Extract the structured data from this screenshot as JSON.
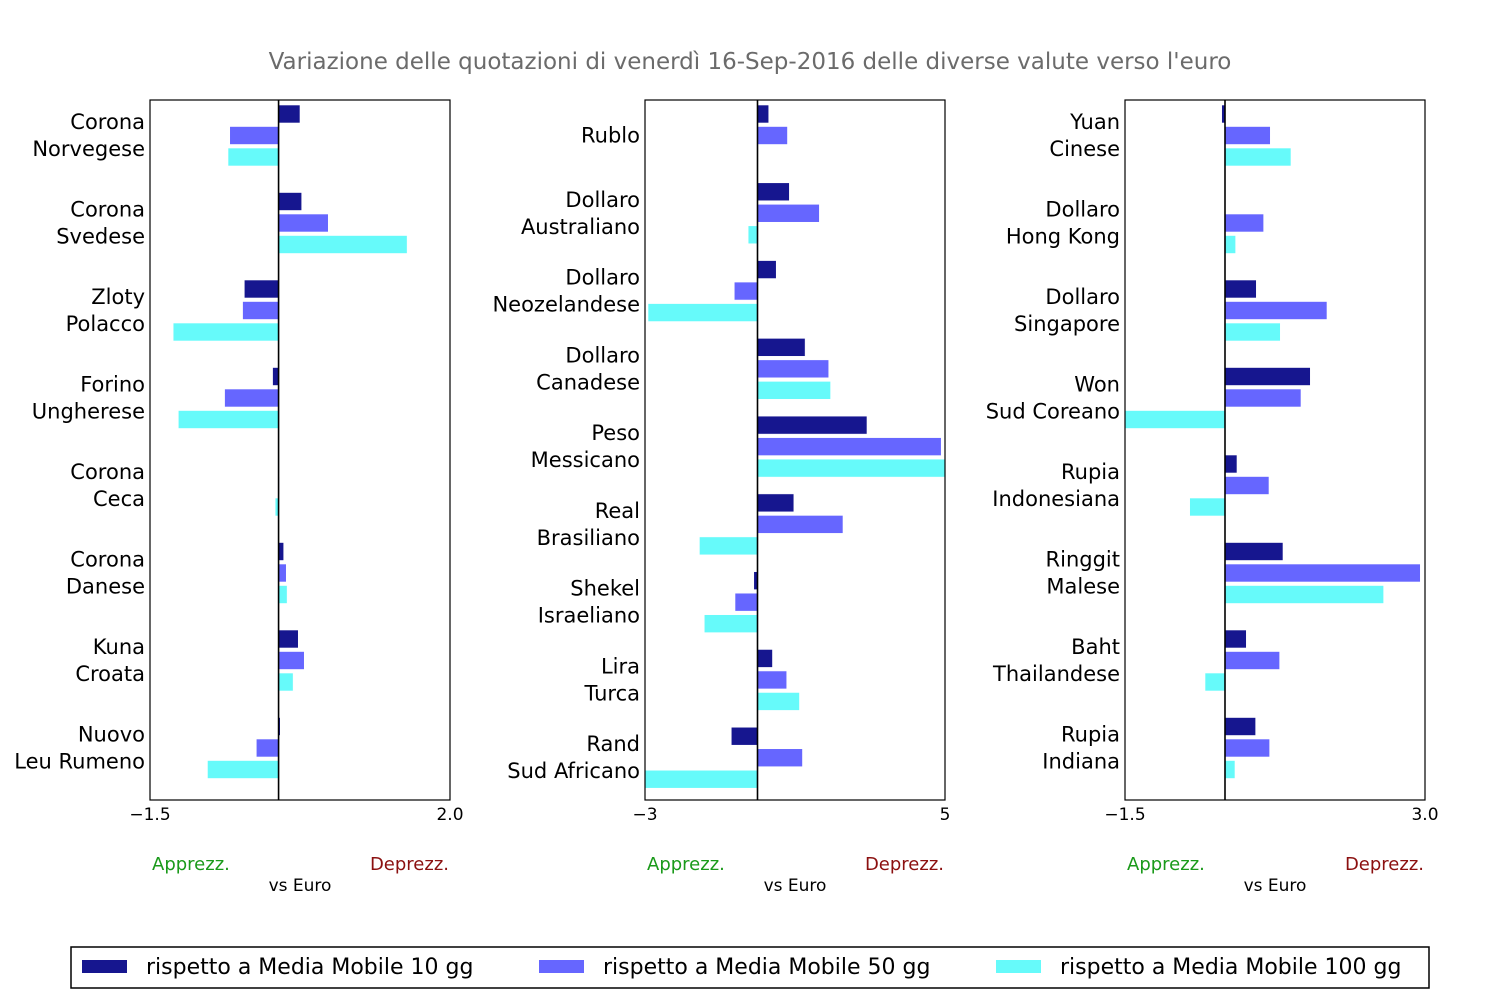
{
  "chart_title": "Variazione delle quotazioni di venerdì 16-Sep-2016 delle diverse valute verso l'euro",
  "colors": {
    "series": [
      "#16168f",
      "#6666ff",
      "#66fafa"
    ],
    "apprezz": "#1a9a1a",
    "deprezz": "#8b1010",
    "title": "#6b6b6b"
  },
  "labels": {
    "apprezz": "Apprezz.",
    "deprezz": "Deprezz.",
    "xlabel": "vs Euro"
  },
  "legend": {
    "items": [
      "rispetto a Media Mobile 10 gg",
      "rispetto a Media Mobile 50 gg",
      "rispetto a Media Mobile 100 gg"
    ],
    "placement": "bottom"
  },
  "chart_data": [
    {
      "type": "bar",
      "orientation": "horizontal",
      "xlim": [
        -1.5,
        2.0
      ],
      "xticks": [
        "−1.5",
        "2.0"
      ],
      "categories": [
        [
          "Corona",
          "Norvegese"
        ],
        [
          "Corona",
          "Svedese"
        ],
        [
          "Zloty",
          "Polacco"
        ],
        [
          "Forino",
          "Ungherese"
        ],
        [
          "Corona",
          "Ceca"
        ],
        [
          "Corona",
          "Danese"
        ],
        [
          "Kuna",
          "Croata"
        ],
        [
          "Nuovo",
          "Leu Rumeno"
        ]
      ],
      "series": [
        {
          "name": "rispetto a Media Mobile 10 gg",
          "values": [
            0.25,
            0.27,
            -0.4,
            -0.07,
            0.0,
            0.06,
            0.23,
            0.02
          ]
        },
        {
          "name": "rispetto a Media Mobile 50 gg",
          "values": [
            -0.57,
            0.58,
            -0.42,
            -0.63,
            0.01,
            0.09,
            0.3,
            -0.26
          ]
        },
        {
          "name": "rispetto a Media Mobile 100 gg",
          "values": [
            -0.59,
            1.5,
            -1.23,
            -1.17,
            -0.04,
            0.1,
            0.17,
            -0.83
          ]
        }
      ]
    },
    {
      "type": "bar",
      "orientation": "horizontal",
      "xlim": [
        -3,
        5
      ],
      "xticks": [
        "−3",
        "5"
      ],
      "categories": [
        [
          "Rublo"
        ],
        [
          "Dollaro",
          "Australiano"
        ],
        [
          "Dollaro",
          "Neozelandese"
        ],
        [
          "Dollaro",
          "Canadese"
        ],
        [
          "Peso",
          "Messicano"
        ],
        [
          "Real",
          "Brasiliano"
        ],
        [
          "Shekel",
          "Israeliano"
        ],
        [
          "Lira",
          "Turca"
        ],
        [
          "Rand",
          "Sud Africano"
        ]
      ],
      "series": [
        {
          "name": "rispetto a Media Mobile 10 gg",
          "values": [
            0.3,
            0.85,
            0.5,
            1.27,
            2.92,
            0.97,
            -0.1,
            0.4,
            -0.7
          ]
        },
        {
          "name": "rispetto a Media Mobile 50 gg",
          "values": [
            0.8,
            1.65,
            -0.62,
            1.9,
            4.9,
            2.28,
            -0.6,
            0.78,
            1.2
          ]
        },
        {
          "name": "rispetto a Media Mobile 100 gg",
          "values": [
            0.0,
            -0.25,
            -2.92,
            1.95,
            5.0,
            -1.55,
            -1.42,
            1.12,
            -3.0
          ]
        }
      ]
    },
    {
      "type": "bar",
      "orientation": "horizontal",
      "xlim": [
        -1.5,
        3.0
      ],
      "xticks": [
        "−1.5",
        "3.0"
      ],
      "categories": [
        [
          "Yuan",
          "Cinese"
        ],
        [
          "Dollaro",
          "Hong Kong"
        ],
        [
          "Dollaro",
          "Singapore"
        ],
        [
          "Won",
          "Sud Coreano"
        ],
        [
          "Rupia",
          "Indonesiana"
        ],
        [
          "Ringgit",
          "Malese"
        ],
        [
          "Baht",
          "Thailandese"
        ],
        [
          "Rupia",
          "Indiana"
        ]
      ],
      "series": [
        {
          "name": "rispetto a Media Mobile 10 gg",
          "values": [
            -0.05,
            0.0,
            0.47,
            1.28,
            0.18,
            0.87,
            0.32,
            0.46
          ]
        },
        {
          "name": "rispetto a Media Mobile 50 gg",
          "values": [
            0.68,
            0.58,
            1.53,
            1.14,
            0.66,
            2.93,
            0.82,
            0.67
          ]
        },
        {
          "name": "rispetto a Media Mobile 100 gg",
          "values": [
            0.99,
            0.16,
            0.83,
            -1.5,
            -0.53,
            2.38,
            -0.3,
            0.15
          ]
        }
      ]
    }
  ]
}
